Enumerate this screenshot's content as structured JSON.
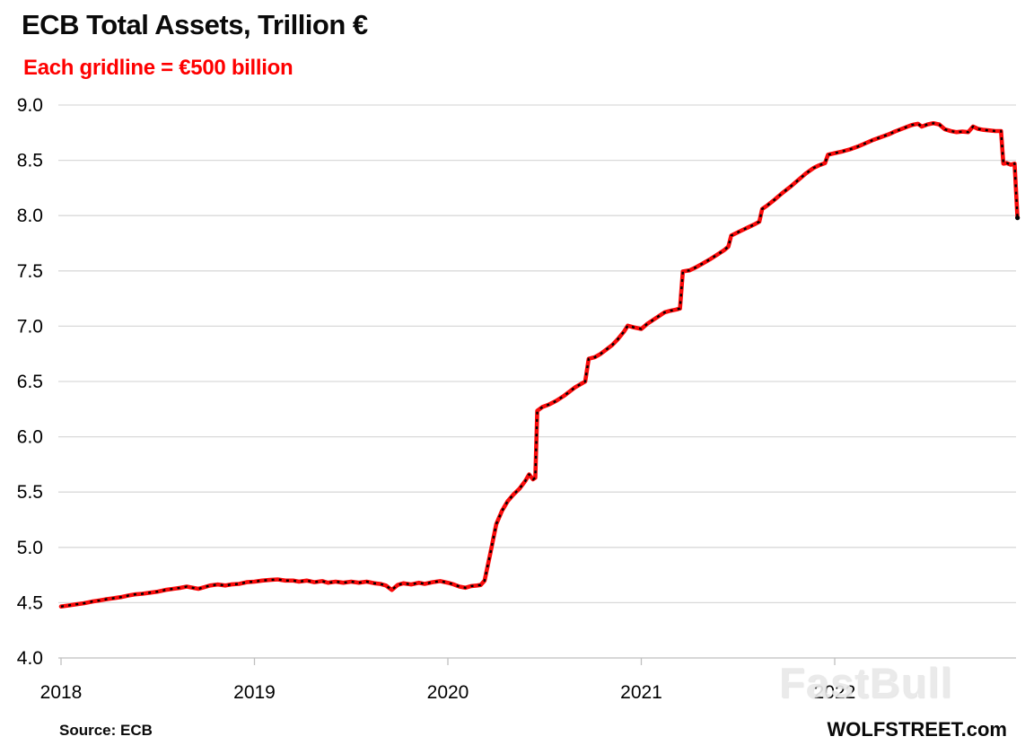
{
  "header": {
    "title": "ECB Total Assets, Trillion €",
    "subtitle": "Each gridline = €500 billion"
  },
  "footer": {
    "source": "Source: ECB",
    "brand": "WOLFSTREET.com"
  },
  "watermark": {
    "text": "FastBull"
  },
  "colors": {
    "line": "#fa0a0a",
    "marker_dash": "#000000",
    "subtitle": "#fe0000",
    "gridline": "#d9d9d9",
    "axis": "#bfbfbf"
  },
  "chart_data": {
    "type": "line",
    "title": "ECB Total Assets, Trillion €",
    "subtitle": "Each gridline = €500 billion",
    "xlabel": "",
    "ylabel": "Trillion €",
    "ylim": [
      4.0,
      9.0
    ],
    "ytick_step": 0.5,
    "yticks": [
      "9.0",
      "8.5",
      "8.0",
      "7.5",
      "7.0",
      "6.5",
      "6.0",
      "5.5",
      "5.0",
      "4.5",
      "4.0"
    ],
    "xticks": [
      "2018",
      "2019",
      "2020",
      "2021",
      "2022"
    ],
    "xlim": [
      2018.0,
      2022.98
    ],
    "grid": "horizontal",
    "legend": "none",
    "line_color": "#fa0a0a",
    "line_overlay": "black dashed markers",
    "series": [
      {
        "name": "ECB total assets, trillion €",
        "points": [
          [
            2018.0,
            4.465
          ],
          [
            2018.04,
            4.475
          ],
          [
            2018.08,
            4.485
          ],
          [
            2018.12,
            4.495
          ],
          [
            2018.16,
            4.51
          ],
          [
            2018.2,
            4.52
          ],
          [
            2018.23,
            4.53
          ],
          [
            2018.27,
            4.54
          ],
          [
            2018.31,
            4.55
          ],
          [
            2018.35,
            4.565
          ],
          [
            2018.38,
            4.575
          ],
          [
            2018.42,
            4.58
          ],
          [
            2018.46,
            4.59
          ],
          [
            2018.5,
            4.6
          ],
          [
            2018.54,
            4.615
          ],
          [
            2018.58,
            4.625
          ],
          [
            2018.62,
            4.635
          ],
          [
            2018.65,
            4.645
          ],
          [
            2018.68,
            4.635
          ],
          [
            2018.71,
            4.625
          ],
          [
            2018.74,
            4.64
          ],
          [
            2018.77,
            4.655
          ],
          [
            2018.81,
            4.665
          ],
          [
            2018.85,
            4.655
          ],
          [
            2018.88,
            4.665
          ],
          [
            2018.92,
            4.67
          ],
          [
            2018.96,
            4.685
          ],
          [
            2019.0,
            4.69
          ],
          [
            2019.04,
            4.7
          ],
          [
            2019.08,
            4.705
          ],
          [
            2019.12,
            4.71
          ],
          [
            2019.16,
            4.7
          ],
          [
            2019.2,
            4.7
          ],
          [
            2019.23,
            4.69
          ],
          [
            2019.27,
            4.7
          ],
          [
            2019.31,
            4.685
          ],
          [
            2019.35,
            4.695
          ],
          [
            2019.38,
            4.68
          ],
          [
            2019.42,
            4.69
          ],
          [
            2019.46,
            4.68
          ],
          [
            2019.5,
            4.69
          ],
          [
            2019.54,
            4.68
          ],
          [
            2019.58,
            4.69
          ],
          [
            2019.62,
            4.675
          ],
          [
            2019.65,
            4.67
          ],
          [
            2019.68,
            4.655
          ],
          [
            2019.71,
            4.615
          ],
          [
            2019.74,
            4.66
          ],
          [
            2019.77,
            4.675
          ],
          [
            2019.81,
            4.665
          ],
          [
            2019.85,
            4.68
          ],
          [
            2019.88,
            4.67
          ],
          [
            2019.92,
            4.685
          ],
          [
            2019.96,
            4.695
          ],
          [
            2020.0,
            4.68
          ],
          [
            2020.03,
            4.665
          ],
          [
            2020.06,
            4.645
          ],
          [
            2020.09,
            4.635
          ],
          [
            2020.12,
            4.65
          ],
          [
            2020.15,
            4.655
          ],
          [
            2020.17,
            4.66
          ],
          [
            2020.19,
            4.7
          ],
          [
            2020.22,
            4.95
          ],
          [
            2020.25,
            5.21
          ],
          [
            2020.28,
            5.33
          ],
          [
            2020.31,
            5.42
          ],
          [
            2020.34,
            5.48
          ],
          [
            2020.37,
            5.53
          ],
          [
            2020.4,
            5.6
          ],
          [
            2020.42,
            5.66
          ],
          [
            2020.44,
            5.615
          ],
          [
            2020.452,
            5.63
          ],
          [
            2020.462,
            6.235
          ],
          [
            2020.49,
            6.27
          ],
          [
            2020.52,
            6.29
          ],
          [
            2020.56,
            6.325
          ],
          [
            2020.6,
            6.37
          ],
          [
            2020.63,
            6.41
          ],
          [
            2020.66,
            6.45
          ],
          [
            2020.69,
            6.48
          ],
          [
            2020.71,
            6.5
          ],
          [
            2020.728,
            6.705
          ],
          [
            2020.76,
            6.72
          ],
          [
            2020.79,
            6.75
          ],
          [
            2020.82,
            6.79
          ],
          [
            2020.85,
            6.83
          ],
          [
            2020.88,
            6.885
          ],
          [
            2020.91,
            6.95
          ],
          [
            2020.93,
            7.005
          ],
          [
            2020.96,
            6.99
          ],
          [
            2021.0,
            6.975
          ],
          [
            2021.03,
            7.02
          ],
          [
            2021.06,
            7.055
          ],
          [
            2021.09,
            7.09
          ],
          [
            2021.12,
            7.125
          ],
          [
            2021.15,
            7.14
          ],
          [
            2021.18,
            7.15
          ],
          [
            2021.2,
            7.16
          ],
          [
            2021.215,
            7.495
          ],
          [
            2021.25,
            7.505
          ],
          [
            2021.28,
            7.53
          ],
          [
            2021.32,
            7.57
          ],
          [
            2021.36,
            7.61
          ],
          [
            2021.4,
            7.655
          ],
          [
            2021.43,
            7.69
          ],
          [
            2021.45,
            7.72
          ],
          [
            2021.465,
            7.82
          ],
          [
            2021.5,
            7.85
          ],
          [
            2021.53,
            7.875
          ],
          [
            2021.56,
            7.9
          ],
          [
            2021.59,
            7.925
          ],
          [
            2021.61,
            7.945
          ],
          [
            2021.625,
            8.06
          ],
          [
            2021.65,
            8.09
          ],
          [
            2021.69,
            8.145
          ],
          [
            2021.73,
            8.205
          ],
          [
            2021.77,
            8.26
          ],
          [
            2021.81,
            8.32
          ],
          [
            2021.85,
            8.38
          ],
          [
            2021.89,
            8.43
          ],
          [
            2021.92,
            8.455
          ],
          [
            2021.95,
            8.475
          ],
          [
            2021.965,
            8.55
          ],
          [
            2022.0,
            8.565
          ],
          [
            2022.04,
            8.58
          ],
          [
            2022.08,
            8.6
          ],
          [
            2022.12,
            8.625
          ],
          [
            2022.16,
            8.655
          ],
          [
            2022.2,
            8.685
          ],
          [
            2022.24,
            8.71
          ],
          [
            2022.28,
            8.735
          ],
          [
            2022.31,
            8.76
          ],
          [
            2022.34,
            8.78
          ],
          [
            2022.37,
            8.8
          ],
          [
            2022.4,
            8.82
          ],
          [
            2022.43,
            8.83
          ],
          [
            2022.45,
            8.805
          ],
          [
            2022.48,
            8.825
          ],
          [
            2022.51,
            8.835
          ],
          [
            2022.54,
            8.825
          ],
          [
            2022.57,
            8.78
          ],
          [
            2022.6,
            8.765
          ],
          [
            2022.63,
            8.755
          ],
          [
            2022.66,
            8.76
          ],
          [
            2022.69,
            8.755
          ],
          [
            2022.715,
            8.805
          ],
          [
            2022.74,
            8.785
          ],
          [
            2022.77,
            8.775
          ],
          [
            2022.8,
            8.77
          ],
          [
            2022.83,
            8.765
          ],
          [
            2022.86,
            8.765
          ],
          [
            2022.872,
            8.47
          ],
          [
            2022.89,
            8.475
          ],
          [
            2022.91,
            8.46
          ],
          [
            2022.93,
            8.47
          ],
          [
            2022.945,
            7.98
          ]
        ]
      }
    ]
  }
}
